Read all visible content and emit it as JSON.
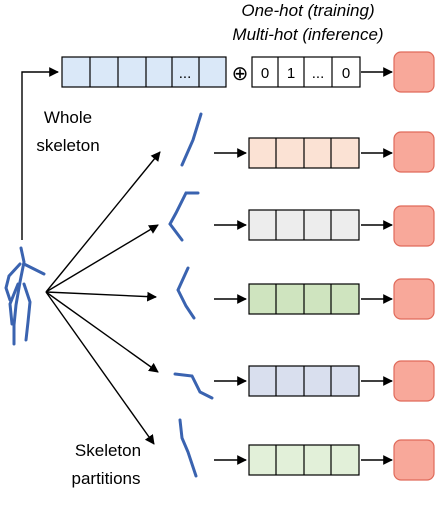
{
  "header": {
    "line1": "One-hot (training)",
    "line2": "Multi-hot (inference)"
  },
  "labels": {
    "whole": [
      "Whole",
      "skeleton"
    ],
    "partitions": [
      "Skeleton",
      "partitions"
    ]
  },
  "top_row": {
    "ellipsis": "...",
    "oplus": "⊕",
    "onehot": [
      "0",
      "1",
      "...",
      "0"
    ]
  },
  "colors": {
    "top_row_fill": "#dae8f8",
    "output_fill": "#f8a89a",
    "output_stroke": "#e06a5a",
    "skeleton_blue": "#3a63b0",
    "rows": [
      "#fbe2d4",
      "#ededed",
      "#cfe4bf",
      "#d9dfee",
      "#e2f0d9"
    ]
  }
}
